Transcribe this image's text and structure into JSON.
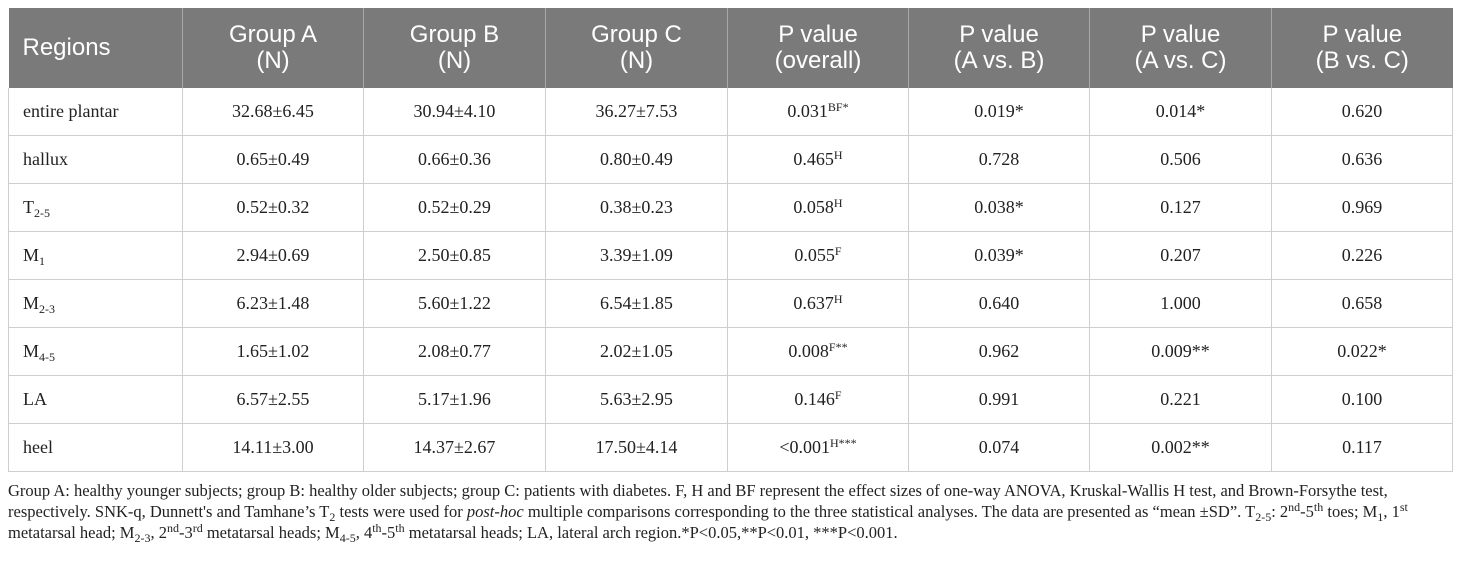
{
  "table": {
    "headers": [
      {
        "line1": "Regions",
        "line2": ""
      },
      {
        "line1": "Group A",
        "line2": "(N)"
      },
      {
        "line1": "Group B",
        "line2": "(N)"
      },
      {
        "line1": "Group C",
        "line2": "(N)"
      },
      {
        "line1": "P value",
        "line2": "(overall)"
      },
      {
        "line1": "P value",
        "line2": "(A vs. B)"
      },
      {
        "line1": "P value",
        "line2": "(A vs. C)"
      },
      {
        "line1": "P value",
        "line2": "(B vs. C)"
      }
    ],
    "rows": [
      {
        "region": "entire plantar",
        "region_sub": "",
        "a": "32.68±6.45",
        "b": "30.94±4.10",
        "c": "36.27±7.53",
        "p_overall": "0.031",
        "p_overall_sup": "BF",
        "p_overall_mark": "*",
        "p_ab": "0.019*",
        "p_ac": "0.014*",
        "p_bc": "0.620"
      },
      {
        "region": "hallux",
        "region_sub": "",
        "a": "0.65±0.49",
        "b": "0.66±0.36",
        "c": "0.80±0.49",
        "p_overall": "0.465",
        "p_overall_sup": "H",
        "p_overall_mark": "",
        "p_ab": "0.728",
        "p_ac": "0.506",
        "p_bc": "0.636"
      },
      {
        "region": "T",
        "region_sub": "2-5",
        "a": "0.52±0.32",
        "b": "0.52±0.29",
        "c": "0.38±0.23",
        "p_overall": "0.058",
        "p_overall_sup": "H",
        "p_overall_mark": "",
        "p_ab": "0.038*",
        "p_ac": "0.127",
        "p_bc": "0.969"
      },
      {
        "region": "M",
        "region_sub": "1",
        "a": "2.94±0.69",
        "b": "2.50±0.85",
        "c": "3.39±1.09",
        "p_overall": "0.055",
        "p_overall_sup": "F",
        "p_overall_mark": "",
        "p_ab": "0.039*",
        "p_ac": "0.207",
        "p_bc": "0.226"
      },
      {
        "region": "M",
        "region_sub": "2-3",
        "a": "6.23±1.48",
        "b": "5.60±1.22",
        "c": "6.54±1.85",
        "p_overall": "0.637",
        "p_overall_sup": "H",
        "p_overall_mark": "",
        "p_ab": "0.640",
        "p_ac": "1.000",
        "p_bc": "0.658"
      },
      {
        "region": "M",
        "region_sub": "4-5",
        "a": "1.65±1.02",
        "b": "2.08±0.77",
        "c": "2.02±1.05",
        "p_overall": "0.008",
        "p_overall_sup": "F",
        "p_overall_mark": "**",
        "p_ab": "0.962",
        "p_ac": "0.009**",
        "p_bc": "0.022*"
      },
      {
        "region": "LA",
        "region_sub": "",
        "a": "6.57±2.55",
        "b": "5.17±1.96",
        "c": "5.63±2.95",
        "p_overall": "0.146",
        "p_overall_sup": "F",
        "p_overall_mark": "",
        "p_ab": "0.991",
        "p_ac": "0.221",
        "p_bc": "0.100"
      },
      {
        "region": "heel",
        "region_sub": "",
        "a": "14.11±3.00",
        "b": "14.37±2.67",
        "c": "17.50±4.14",
        "p_overall": "<0.001",
        "p_overall_sup": "H",
        "p_overall_mark": "***",
        "p_ab": "0.074",
        "p_ac": "0.002**",
        "p_bc": "0.117"
      }
    ]
  },
  "footnote": {
    "s1": "Group A: healthy younger subjects; group B: healthy older subjects; group C: patients with diabetes. F, H and BF represent the effect sizes of one-way ANOVA, Kruskal-Wallis H test, and Brown-Forsythe test, respectively. SNK-q, Dunnett's and Tamhane’s T",
    "s1_sub": "2",
    "s2": " tests were used for ",
    "s2_italic": "post-hoc",
    "s3": " multiple comparisons corresponding to the three statistical analyses. The data are presented as “mean ±SD”. T",
    "t_sub": "2-5",
    "s4": ": 2",
    "sup_nd": "nd",
    "s5": "-5",
    "sup_th1": "th",
    "s6": " toes; M",
    "m1_sub": "1",
    "s7": ", 1",
    "sup_st": "st",
    "s8": " metatarsal head; M",
    "m23_sub": "2-3",
    "s9": ", 2",
    "sup_nd2": "nd",
    "s10": "-3",
    "sup_rd": "rd",
    "s11": " metatarsal heads; M",
    "m45_sub": "4-5",
    "s12": ", 4",
    "sup_th2": "th",
    "s13": "-5",
    "sup_th3": "th",
    "s14": " metatarsal heads; LA, lateral arch region.*P<0.05,**P<0.01, ***P<0.001."
  }
}
